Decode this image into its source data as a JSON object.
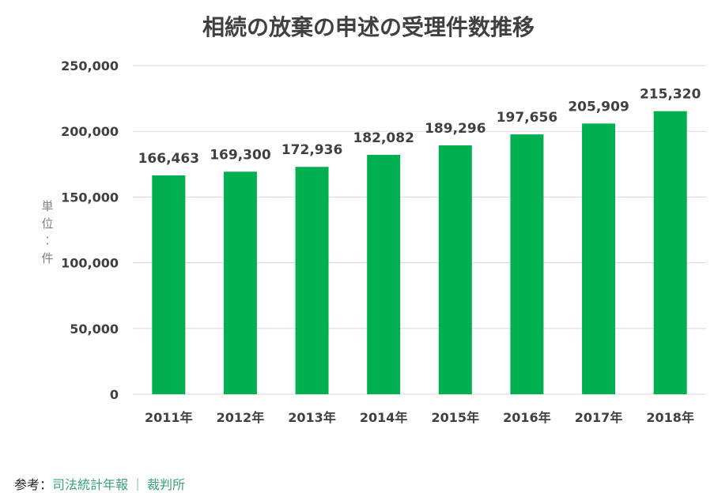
{
  "chart_data": {
    "type": "bar",
    "title": "相続の放棄の申述の受理件数推移",
    "ylabel": "単位：件",
    "xlabel": "",
    "categories": [
      "2011年",
      "2012年",
      "2013年",
      "2014年",
      "2015年",
      "2016年",
      "2017年",
      "2018年"
    ],
    "values": [
      166463,
      169300,
      172936,
      182082,
      189296,
      197656,
      205909,
      215320
    ],
    "value_labels": [
      "166,463",
      "169,300",
      "172,936",
      "182,082",
      "189,296",
      "197,656",
      "205,909",
      "215,320"
    ],
    "ylim": [
      0,
      250000
    ],
    "yticks": [
      0,
      50000,
      100000,
      150000,
      200000,
      250000
    ],
    "ytick_labels": [
      "0",
      "50,000",
      "100,000",
      "150,000",
      "200,000",
      "250,000"
    ],
    "grid": true,
    "legend": "none",
    "bar_color": "#00b050"
  },
  "source": {
    "prefix": "参考：",
    "link1": "司法統計年報",
    "separator": "｜",
    "link2": "裁判所"
  }
}
